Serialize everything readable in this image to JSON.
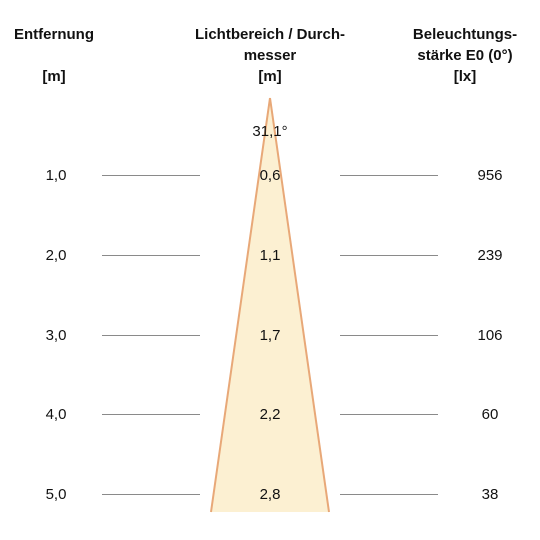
{
  "headers": {
    "distance": {
      "label": "Entfernung",
      "unit": "[m]"
    },
    "diameter": {
      "label_line1": "Lichtbereich / Durch-",
      "label_line2": "messer",
      "unit": "[m]"
    },
    "illuminance": {
      "label_line1": "Beleuchtungs-",
      "label_line2": "stärke E0 (0°)",
      "unit": "[lx]"
    }
  },
  "beam_angle": "31,1°",
  "rows": [
    {
      "distance": "1,0",
      "diameter": "0,6",
      "illuminance": "956"
    },
    {
      "distance": "2,0",
      "diameter": "1,1",
      "illuminance": "239"
    },
    {
      "distance": "3,0",
      "diameter": "1,7",
      "illuminance": "106"
    },
    {
      "distance": "4,0",
      "diameter": "2,2",
      "illuminance": "60"
    },
    {
      "distance": "5,0",
      "diameter": "2,8",
      "illuminance": "38"
    }
  ],
  "colors": {
    "cone_fill": "#fcf0d2",
    "cone_edge": "#e8a878",
    "guide_line": "#8a8a8a",
    "text": "#111111"
  }
}
